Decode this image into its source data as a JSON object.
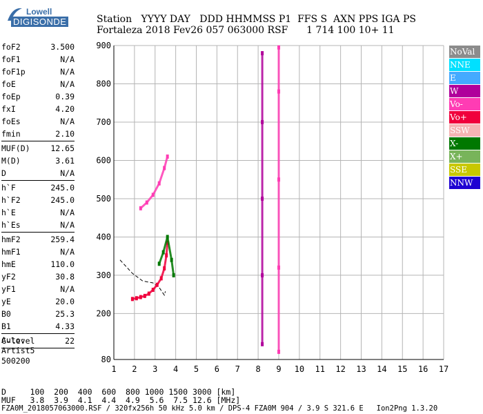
{
  "logo": {
    "line1": "Lowell",
    "line2": "DIGISONDE"
  },
  "header": {
    "labels": "Station   YYYY DAY   DDD HHMMSS P1  FFS S  AXN PPS IGA PS",
    "values": "Fortaleza 2018 Fev26 057 063000 RSF      1 714 100 10+ 11"
  },
  "params_group1": [
    {
      "label": "foF2",
      "value": "3.500"
    },
    {
      "label": "foF1",
      "value": "N/A"
    },
    {
      "label": "foF1p",
      "value": "N/A"
    },
    {
      "label": "foE",
      "value": "N/A"
    },
    {
      "label": "foEp",
      "value": "0.39"
    },
    {
      "label": "fxI",
      "value": "4.20"
    },
    {
      "label": "foEs",
      "value": "N/A"
    },
    {
      "label": "fmin",
      "value": "2.10"
    }
  ],
  "params_group2": [
    {
      "label": "MUF(D)",
      "value": "12.65"
    },
    {
      "label": "M(D)",
      "value": "3.61"
    },
    {
      "label": "D",
      "value": "N/A"
    }
  ],
  "params_group3": [
    {
      "label": "h`F",
      "value": "245.0"
    },
    {
      "label": "h`F2",
      "value": "245.0"
    },
    {
      "label": "h`E",
      "value": "N/A"
    },
    {
      "label": "h`Es",
      "value": "N/A"
    }
  ],
  "params_group4": [
    {
      "label": "hmF2",
      "value": "259.4"
    },
    {
      "label": "hmF1",
      "value": "N/A"
    },
    {
      "label": "hmE",
      "value": "110.0"
    },
    {
      "label": "yF2",
      "value": "30.8"
    },
    {
      "label": "yF1",
      "value": "N/A"
    },
    {
      "label": "yE",
      "value": "20.0"
    },
    {
      "label": "B0",
      "value": "25.3"
    },
    {
      "label": "B1",
      "value": "4.33"
    }
  ],
  "clevel": {
    "label": "C-level",
    "value": "22"
  },
  "auto": {
    "line1": "Auto:",
    "line2": "Artist5",
    "line3": "500200"
  },
  "legend": [
    {
      "label": "NoVal",
      "color": "#8c8c8c"
    },
    {
      "label": "NNE",
      "color": "#00e0ff"
    },
    {
      "label": "E",
      "color": "#44aaff"
    },
    {
      "label": "W",
      "color": "#b0009b"
    },
    {
      "label": "Vo-",
      "color": "#ff3cb4"
    },
    {
      "label": "Vo+",
      "color": "#f0003c"
    },
    {
      "label": "SSW",
      "color": "#f5b4b4"
    },
    {
      "label": "X-",
      "color": "#007800"
    },
    {
      "label": "X+",
      "color": "#78b45a"
    },
    {
      "label": "SSE",
      "color": "#c8c800"
    },
    {
      "label": "NNW",
      "color": "#1e00d2"
    }
  ],
  "footer": {
    "line1": "D     100  200  400  600  800 1000 1500 3000 [km]",
    "line2": "MUF   3.8  3.9  4.1  4.4  4.9  5.6  7.5 12.6 [MHz]",
    "line3": "FZA0M_2018057063000.RSF / 320fx256h 50 kHz 5.0 km / DPS-4 FZA0M 904 / 3.9 S 321.6 E   Ion2Png 1.3.20"
  },
  "chart_data": {
    "type": "scatter",
    "title": "",
    "xlabel": "",
    "ylabel": "",
    "xlim": [
      1,
      17
    ],
    "ylim": [
      80,
      900
    ],
    "x_ticks": [
      1,
      2,
      3,
      4,
      5,
      6,
      7,
      8,
      9,
      10,
      11,
      12,
      13,
      14,
      15,
      16,
      17
    ],
    "y_ticks": [
      80,
      200,
      300,
      400,
      500,
      600,
      700,
      800,
      900
    ],
    "grid": true,
    "scale": "range vs frequency (MHz)",
    "traces": [
      {
        "name": "F2 O-trace",
        "color": "#f0003c",
        "points": [
          [
            1.9,
            238
          ],
          [
            2.1,
            240
          ],
          [
            2.3,
            243
          ],
          [
            2.5,
            246
          ],
          [
            2.7,
            252
          ],
          [
            2.9,
            262
          ],
          [
            3.1,
            275
          ],
          [
            3.3,
            292
          ],
          [
            3.45,
            318
          ],
          [
            3.55,
            352
          ],
          [
            3.6,
            385
          ]
        ]
      },
      {
        "name": "F2 second hop",
        "color": "#ff3cb4",
        "points": [
          [
            2.3,
            475
          ],
          [
            2.6,
            490
          ],
          [
            2.9,
            510
          ],
          [
            3.2,
            540
          ],
          [
            3.45,
            580
          ],
          [
            3.6,
            610
          ]
        ]
      },
      {
        "name": "spread echoes",
        "color": "#007800",
        "points": [
          [
            3.2,
            330
          ],
          [
            3.4,
            360
          ],
          [
            3.6,
            400
          ],
          [
            3.8,
            340
          ],
          [
            3.9,
            300
          ]
        ]
      },
      {
        "name": "fixed-frequency interference 8.2",
        "color": "#b0009b",
        "points": [
          [
            8.2,
            120
          ],
          [
            8.2,
            300
          ],
          [
            8.2,
            500
          ],
          [
            8.2,
            700
          ],
          [
            8.2,
            880
          ]
        ]
      },
      {
        "name": "fixed-frequency interference 9.0",
        "color": "#ff3cb4",
        "points": [
          [
            9.0,
            100
          ],
          [
            9.0,
            320
          ],
          [
            9.0,
            550
          ],
          [
            9.0,
            780
          ],
          [
            9.0,
            895
          ]
        ]
      }
    ],
    "profile_model": {
      "points": [
        [
          1.3,
          340
        ],
        [
          1.9,
          305
        ],
        [
          2.4,
          285
        ],
        [
          2.9,
          280
        ],
        [
          3.2,
          268
        ],
        [
          3.45,
          248
        ],
        [
          3.5,
          258
        ]
      ]
    },
    "legend_position": "right"
  }
}
